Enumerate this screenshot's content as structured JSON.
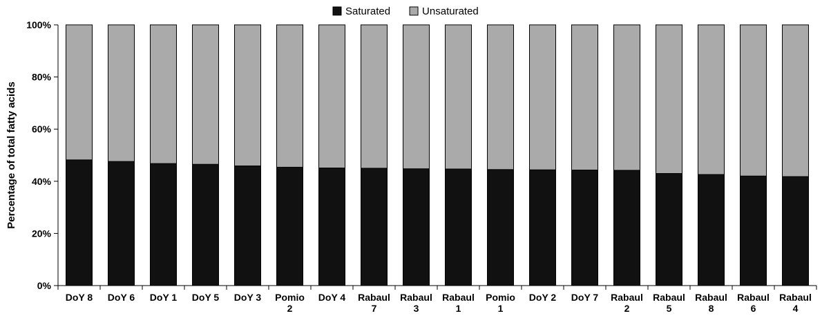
{
  "chart_data": {
    "type": "bar",
    "stacked": true,
    "percent": true,
    "categories": [
      [
        "DoY 8"
      ],
      [
        "DoY 6"
      ],
      [
        "DoY 1"
      ],
      [
        "DoY 5"
      ],
      [
        "DoY 3"
      ],
      [
        "Pomio",
        "2"
      ],
      [
        "DoY 4"
      ],
      [
        "Rabaul",
        "7"
      ],
      [
        "Rabaul",
        "3"
      ],
      [
        "Rabaul",
        "1"
      ],
      [
        "Pomio",
        "1"
      ],
      [
        "DoY 2"
      ],
      [
        "DoY 7"
      ],
      [
        "Rabaul",
        "2"
      ],
      [
        "Rabaul",
        "5"
      ],
      [
        "Rabaul",
        "8"
      ],
      [
        "Rabaul",
        "6"
      ],
      [
        "Rabaul",
        "4"
      ]
    ],
    "series": [
      {
        "name": "Saturated",
        "color": "#111111",
        "values": [
          48.2,
          47.6,
          46.8,
          46.5,
          45.9,
          45.4,
          45.1,
          45.0,
          44.8,
          44.7,
          44.5,
          44.4,
          44.3,
          44.2,
          43.0,
          42.6,
          42.0,
          41.8
        ]
      },
      {
        "name": "Unsaturated",
        "color": "#aaaaaa",
        "values": [
          51.8,
          52.4,
          53.2,
          53.5,
          54.1,
          54.6,
          54.9,
          55.0,
          55.2,
          55.3,
          55.5,
          55.6,
          55.7,
          55.8,
          57.0,
          57.4,
          58.0,
          58.2
        ]
      }
    ],
    "ylabel": "Percentage of total fatty acids",
    "xlabel": "",
    "ylim": [
      0,
      100
    ],
    "yticks": [
      "0%",
      "20%",
      "40%",
      "60%",
      "80%",
      "100%"
    ],
    "legend_position": "top-center",
    "grid": false
  }
}
